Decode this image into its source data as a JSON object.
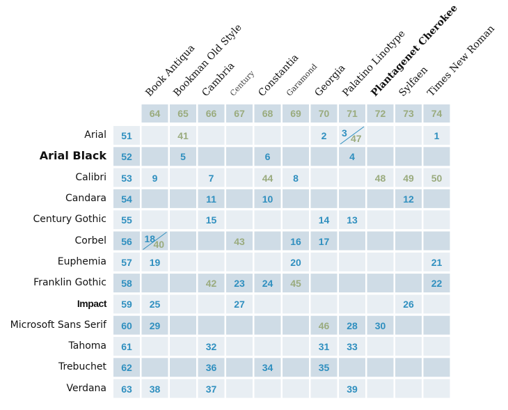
{
  "chart_data": {
    "type": "table",
    "columns": [
      {
        "code": "64",
        "name": "Book Antiqua"
      },
      {
        "code": "65",
        "name": "Bookman Old Style"
      },
      {
        "code": "66",
        "name": "Cambria"
      },
      {
        "code": "67",
        "name": "Century"
      },
      {
        "code": "68",
        "name": "Constantia"
      },
      {
        "code": "69",
        "name": "Garamond"
      },
      {
        "code": "70",
        "name": "Georgia"
      },
      {
        "code": "71",
        "name": "Palatino Linotype"
      },
      {
        "code": "72",
        "name": "Plantagenet Cherokee"
      },
      {
        "code": "73",
        "name": "Sylfaen"
      },
      {
        "code": "74",
        "name": "Times New Roman"
      }
    ],
    "rows": [
      {
        "name": "Arial",
        "code": "51"
      },
      {
        "name": "Arial Black",
        "code": "52"
      },
      {
        "name": "Calibri",
        "code": "53"
      },
      {
        "name": "Candara",
        "code": "54"
      },
      {
        "name": "Century Gothic",
        "code": "55"
      },
      {
        "name": "Corbel",
        "code": "56"
      },
      {
        "name": "Euphemia",
        "code": "57"
      },
      {
        "name": "Franklin Gothic",
        "code": "58"
      },
      {
        "name": "Impact",
        "code": "59"
      },
      {
        "name": "Microsoft Sans  Serif",
        "code": "60"
      },
      {
        "name": "Tahoma",
        "code": "61"
      },
      {
        "name": "Trebuchet",
        "code": "62"
      },
      {
        "name": "Verdana",
        "code": "63"
      }
    ],
    "cells": [
      {
        "row": 0,
        "col": 1,
        "value": "41",
        "tone": "green"
      },
      {
        "row": 0,
        "col": 6,
        "value": "2",
        "tone": "blue"
      },
      {
        "row": 0,
        "col": 7,
        "value": "3",
        "tone": "blue",
        "second": "47",
        "second_tone": "green"
      },
      {
        "row": 0,
        "col": 10,
        "value": "1",
        "tone": "blue"
      },
      {
        "row": 1,
        "col": 1,
        "value": "5",
        "tone": "blue"
      },
      {
        "row": 1,
        "col": 4,
        "value": "6",
        "tone": "blue"
      },
      {
        "row": 1,
        "col": 7,
        "value": "4",
        "tone": "blue"
      },
      {
        "row": 2,
        "col": 0,
        "value": "9",
        "tone": "blue"
      },
      {
        "row": 2,
        "col": 2,
        "value": "7",
        "tone": "blue"
      },
      {
        "row": 2,
        "col": 4,
        "value": "44",
        "tone": "green"
      },
      {
        "row": 2,
        "col": 5,
        "value": "8",
        "tone": "blue"
      },
      {
        "row": 2,
        "col": 8,
        "value": "48",
        "tone": "green"
      },
      {
        "row": 2,
        "col": 9,
        "value": "49",
        "tone": "green"
      },
      {
        "row": 2,
        "col": 10,
        "value": "50",
        "tone": "green"
      },
      {
        "row": 3,
        "col": 2,
        "value": "11",
        "tone": "blue"
      },
      {
        "row": 3,
        "col": 4,
        "value": "10",
        "tone": "blue"
      },
      {
        "row": 3,
        "col": 9,
        "value": "12",
        "tone": "blue"
      },
      {
        "row": 4,
        "col": 2,
        "value": "15",
        "tone": "blue"
      },
      {
        "row": 4,
        "col": 6,
        "value": "14",
        "tone": "blue"
      },
      {
        "row": 4,
        "col": 7,
        "value": "13",
        "tone": "blue"
      },
      {
        "row": 5,
        "col": 0,
        "value": "18",
        "tone": "blue",
        "second": "40",
        "second_tone": "green"
      },
      {
        "row": 5,
        "col": 3,
        "value": "43",
        "tone": "green"
      },
      {
        "row": 5,
        "col": 5,
        "value": "16",
        "tone": "blue"
      },
      {
        "row": 5,
        "col": 6,
        "value": "17",
        "tone": "blue"
      },
      {
        "row": 6,
        "col": 0,
        "value": "19",
        "tone": "blue"
      },
      {
        "row": 6,
        "col": 5,
        "value": "20",
        "tone": "blue"
      },
      {
        "row": 6,
        "col": 10,
        "value": "21",
        "tone": "blue"
      },
      {
        "row": 7,
        "col": 2,
        "value": "42",
        "tone": "green"
      },
      {
        "row": 7,
        "col": 3,
        "value": "23",
        "tone": "blue"
      },
      {
        "row": 7,
        "col": 4,
        "value": "24",
        "tone": "blue"
      },
      {
        "row": 7,
        "col": 5,
        "value": "45",
        "tone": "green"
      },
      {
        "row": 7,
        "col": 10,
        "value": "22",
        "tone": "blue"
      },
      {
        "row": 8,
        "col": 0,
        "value": "25",
        "tone": "blue"
      },
      {
        "row": 8,
        "col": 3,
        "value": "27",
        "tone": "blue"
      },
      {
        "row": 8,
        "col": 9,
        "value": "26",
        "tone": "blue"
      },
      {
        "row": 9,
        "col": 0,
        "value": "29",
        "tone": "blue"
      },
      {
        "row": 9,
        "col": 6,
        "value": "46",
        "tone": "green"
      },
      {
        "row": 9,
        "col": 7,
        "value": "28",
        "tone": "blue"
      },
      {
        "row": 9,
        "col": 8,
        "value": "30",
        "tone": "blue"
      },
      {
        "row": 10,
        "col": 2,
        "value": "32",
        "tone": "blue"
      },
      {
        "row": 10,
        "col": 6,
        "value": "31",
        "tone": "blue"
      },
      {
        "row": 10,
        "col": 7,
        "value": "33",
        "tone": "blue"
      },
      {
        "row": 11,
        "col": 2,
        "value": "36",
        "tone": "blue"
      },
      {
        "row": 11,
        "col": 4,
        "value": "34",
        "tone": "blue"
      },
      {
        "row": 11,
        "col": 6,
        "value": "35",
        "tone": "blue"
      },
      {
        "row": 12,
        "col": 0,
        "value": "38",
        "tone": "blue"
      },
      {
        "row": 12,
        "col": 2,
        "value": "37",
        "tone": "blue"
      },
      {
        "row": 12,
        "col": 7,
        "value": "39",
        "tone": "blue"
      }
    ],
    "colors": {
      "blue": "#2f8fbf",
      "green": "#9aab7e",
      "cell_dark": "#cfdce6",
      "cell_light": "#e8eef3",
      "header_bg": "#cfdce6",
      "header_text": "#9aab7e"
    }
  }
}
